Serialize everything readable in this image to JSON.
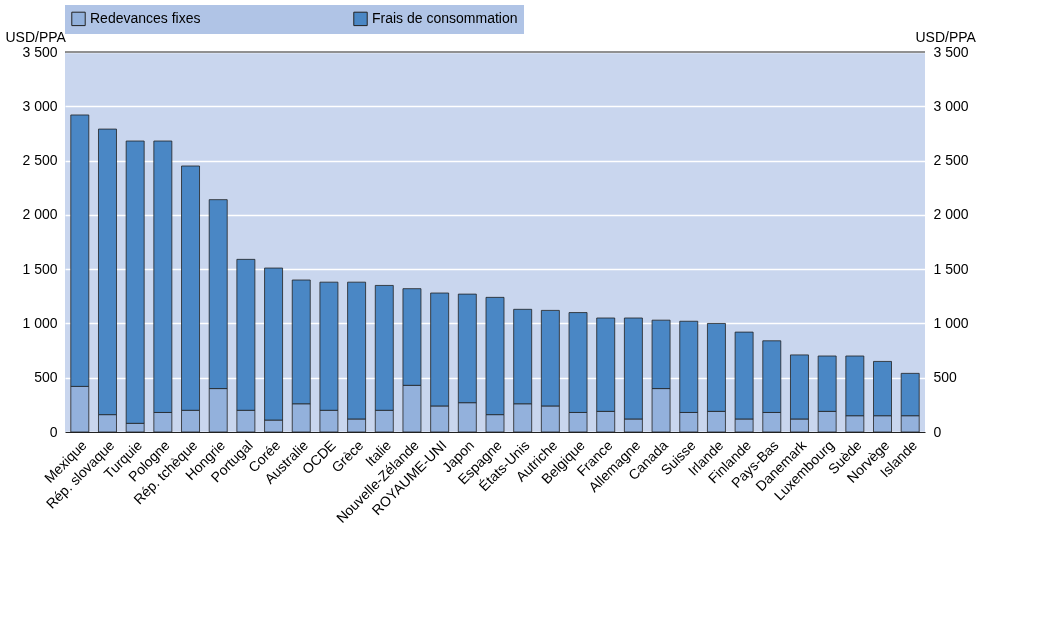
{
  "chart_data": {
    "type": "bar",
    "stacked": true,
    "categories": [
      "Mexique",
      "Rép. slovaque",
      "Turquie",
      "Pologne",
      "Rép. tchèque",
      "Hongrie",
      "Portugal",
      "Corée",
      "Australie",
      "OCDE",
      "Grèce",
      "Italie",
      "Nouvelle-Zélande",
      "ROYAUME-UNI",
      "Japon",
      "Espagne",
      "États-Unis",
      "Autriche",
      "Belgique",
      "France",
      "Allemagne",
      "Canada",
      "Suisse",
      "Irlande",
      "Finlande",
      "Pays-Bas",
      "Danemark",
      "Luxembourg",
      "Suède",
      "Norvège",
      "Islande"
    ],
    "series": [
      {
        "name": "Redevances fixes",
        "color": "#93b1dc",
        "values": [
          420,
          160,
          80,
          180,
          200,
          400,
          200,
          110,
          260,
          200,
          120,
          200,
          430,
          240,
          270,
          160,
          260,
          240,
          180,
          190,
          120,
          400,
          180,
          190,
          120,
          180,
          120,
          190,
          150,
          150,
          150
        ]
      },
      {
        "name": "Frais de consommation",
        "color": "#4a87c5",
        "values": [
          2500,
          2630,
          2600,
          2500,
          2250,
          1740,
          1390,
          1400,
          1140,
          1180,
          1260,
          1150,
          890,
          1040,
          1000,
          1080,
          870,
          880,
          920,
          860,
          930,
          630,
          840,
          810,
          800,
          660,
          590,
          510,
          550,
          500,
          390
        ]
      }
    ],
    "ylabel": "USD/PPA",
    "y2label": "USD/PPA",
    "ylim": [
      0,
      3500
    ],
    "yticks": [
      0,
      500,
      {
        "value": 1000,
        "label": "1 000"
      },
      {
        "value": 1500,
        "label": "1 500"
      },
      {
        "value": 2000,
        "label": "2 000"
      },
      {
        "value": 2500,
        "label": "2 500"
      },
      {
        "value": 3000,
        "label": "3 000"
      },
      {
        "value": 3500,
        "label": "3 500"
      }
    ],
    "y2lim": [
      0,
      3500
    ],
    "y2ticks": [
      0,
      500,
      {
        "value": 1000,
        "label": "1 000"
      },
      {
        "value": 1500,
        "label": "1 500"
      },
      {
        "value": 2000,
        "label": "2 000"
      },
      {
        "value": 2500,
        "label": "2 500"
      },
      {
        "value": 3000,
        "label": "3 000"
      },
      {
        "value": 3500,
        "label": "3 500"
      }
    ],
    "grid": "y",
    "legend": "top"
  }
}
